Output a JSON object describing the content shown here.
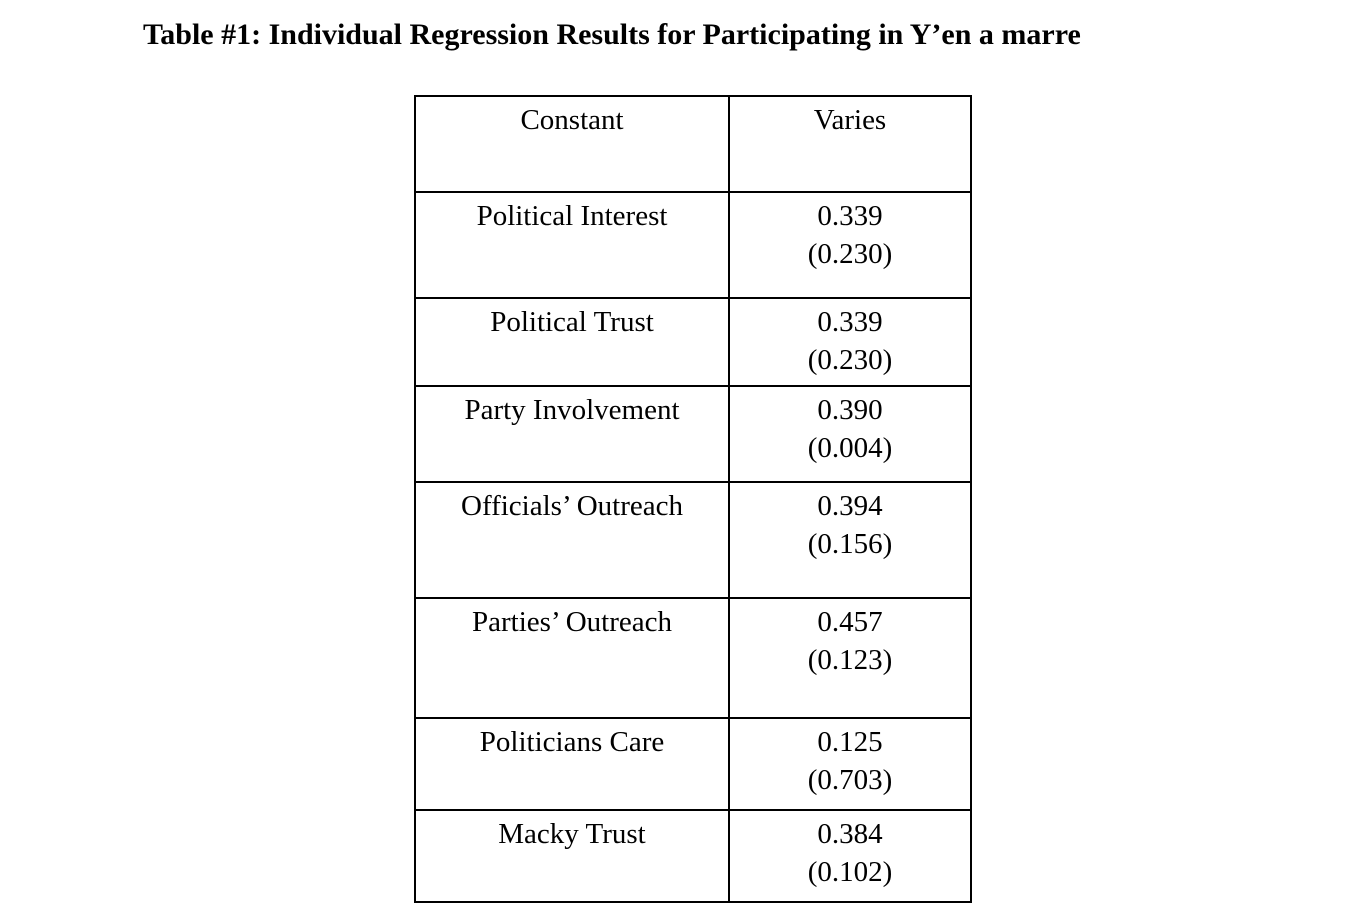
{
  "title": "Table #1: Individual Regression Results for Participating in Y’en a marre",
  "header": {
    "variable": "Constant",
    "value": "Varies"
  },
  "rows": [
    {
      "variable": "Political Interest",
      "coef": "0.339",
      "se": "(0.230)"
    },
    {
      "variable": "Political Trust",
      "coef": "0.339",
      "se": "(0.230)"
    },
    {
      "variable": "Party Involvement",
      "coef": "0.390",
      "se": "(0.004)"
    },
    {
      "variable": "Officials’ Outreach",
      "coef": "0.394",
      "se": "(0.156)"
    },
    {
      "variable": "Parties’ Outreach",
      "coef": "0.457",
      "se": "(0.123)"
    },
    {
      "variable": "Politicians Care",
      "coef": "0.125",
      "se": "(0.703)"
    },
    {
      "variable": "Macky Trust",
      "coef": "0.384",
      "se": "(0.102)"
    }
  ]
}
